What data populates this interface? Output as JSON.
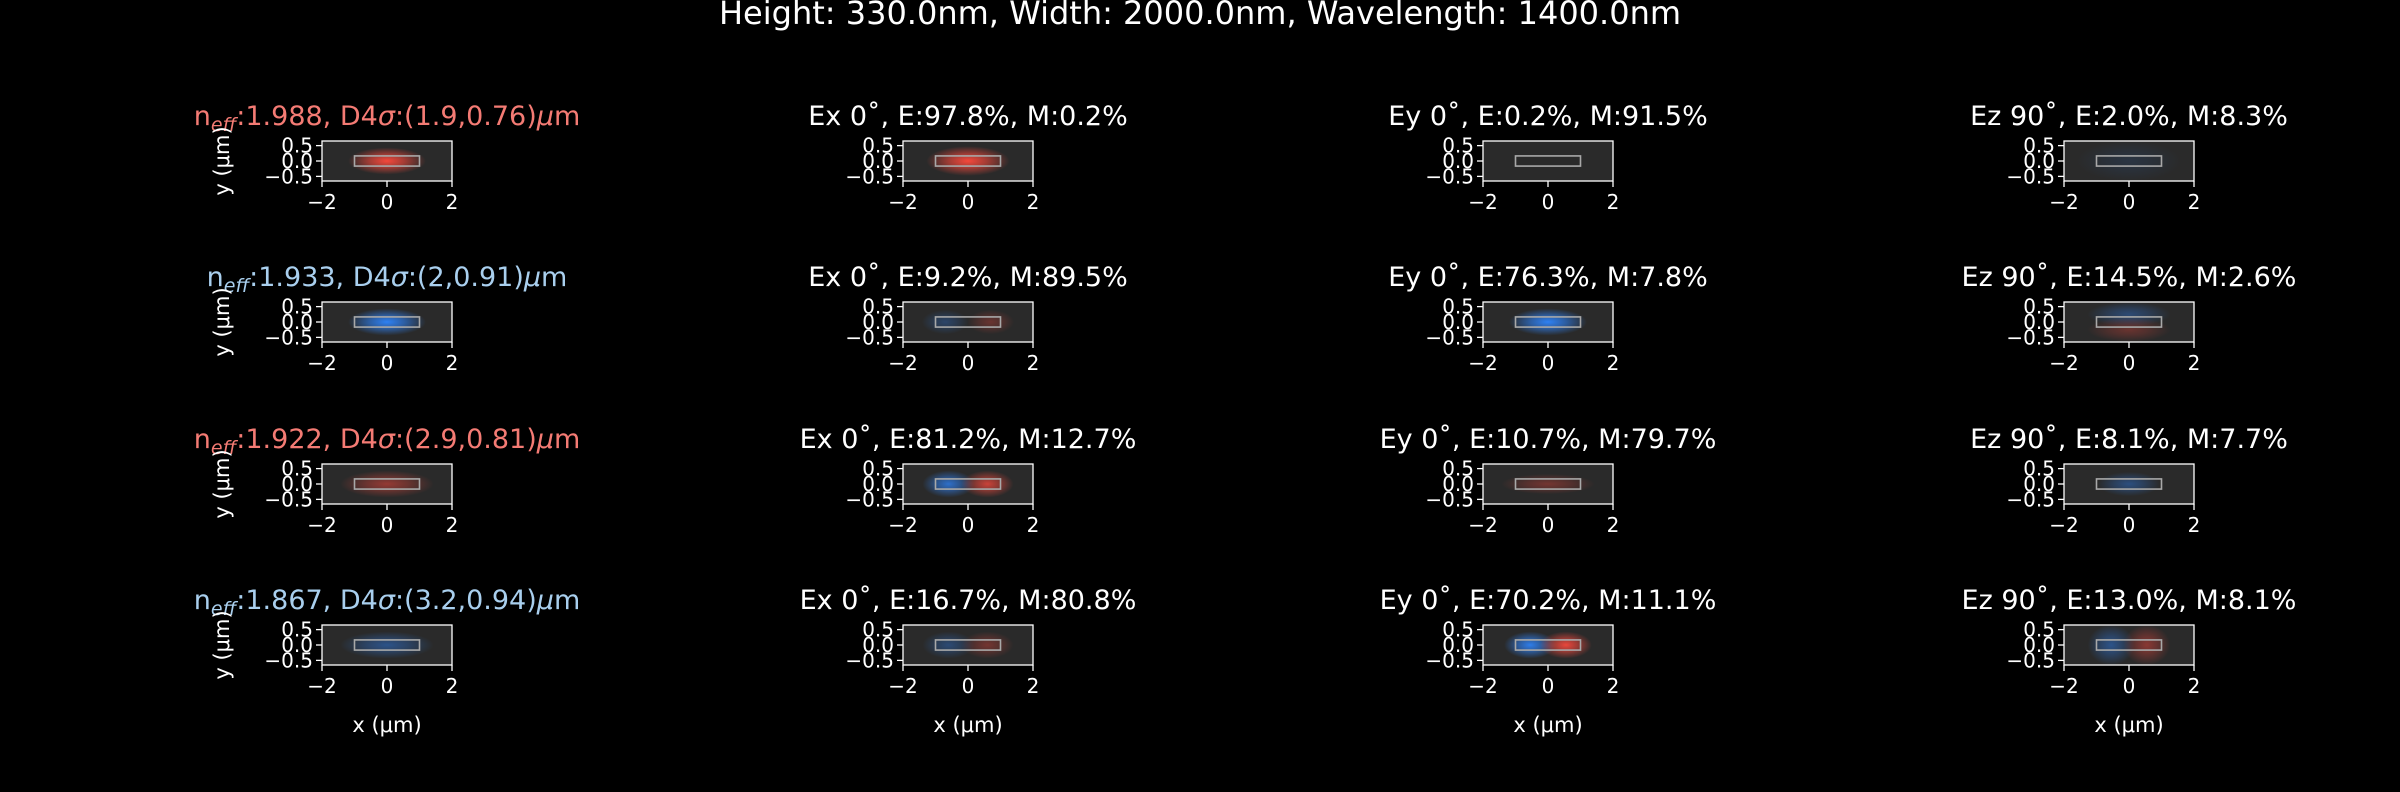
{
  "suptitle": "Height: 330.0nm, Width: 2000.0nm, Wavelength: 1400.0nm",
  "colors": {
    "background": "#000000",
    "axes_face": "#2a2a2a",
    "red_field": "#ff4a3d",
    "blue_field": "#2f86ff",
    "neff_red": "#f47b74",
    "neff_blue": "#a9cfee"
  },
  "chart_data": {
    "type": "heatmap",
    "layout": "grid 4 rows x 4 columns",
    "xlabel": "x (μm)",
    "ylabel": "y (μm)",
    "xticks": [
      "−2",
      "0",
      "2"
    ],
    "yticks": [
      "0.5",
      "0.0",
      "−0.5"
    ],
    "xlim": [
      -2,
      2
    ],
    "ylim": [
      -0.65,
      0.65
    ],
    "waveguide_core": {
      "x": [
        -1.0,
        1.0
      ],
      "y": [
        -0.165,
        0.165
      ]
    },
    "modes": [
      {
        "neff": "1.988",
        "d4sigma": "(1.9,0.76)",
        "title_color": "red",
        "panels": [
          {
            "component": "Ex 0˚",
            "E": "97.8%",
            "M": "0.2%"
          },
          {
            "component": "Ey 0˚",
            "E": "0.2%",
            "M": "91.5%"
          },
          {
            "component": "Ez 90˚",
            "E": "2.0%",
            "M": "8.3%"
          }
        ],
        "fields": [
          {
            "panel": "mode",
            "blobs": [
              {
                "x": 0,
                "y": 0,
                "sx": 0.75,
                "sy": 0.2,
                "color": "red",
                "strength": 0.95
              }
            ]
          },
          {
            "panel": "Ex",
            "blobs": [
              {
                "x": 0,
                "y": 0,
                "sx": 0.8,
                "sy": 0.22,
                "color": "red",
                "strength": 0.95
              }
            ]
          },
          {
            "panel": "Ey",
            "blobs": []
          },
          {
            "panel": "Ez",
            "blobs": [
              {
                "x": 0,
                "y": 0,
                "sx": 1.0,
                "sy": 0.3,
                "color": "blue",
                "strength": 0.12
              }
            ]
          }
        ]
      },
      {
        "neff": "1.933",
        "d4sigma": "(2,0.91)",
        "title_color": "blue",
        "panels": [
          {
            "component": "Ex 0˚",
            "E": "9.2%",
            "M": "89.5%"
          },
          {
            "component": "Ey 0˚",
            "E": "76.3%",
            "M": "7.8%"
          },
          {
            "component": "Ez 90˚",
            "E": "14.5%",
            "M": "2.6%"
          }
        ],
        "fields": [
          {
            "panel": "mode",
            "blobs": [
              {
                "x": 0,
                "y": 0,
                "sx": 0.75,
                "sy": 0.2,
                "color": "blue",
                "strength": 0.95
              }
            ]
          },
          {
            "panel": "Ex",
            "blobs": [
              {
                "x": -0.7,
                "y": 0,
                "sx": 0.45,
                "sy": 0.18,
                "color": "blue",
                "strength": 0.3
              },
              {
                "x": 0.7,
                "y": 0,
                "sx": 0.45,
                "sy": 0.18,
                "color": "red",
                "strength": 0.3
              }
            ]
          },
          {
            "panel": "Ey",
            "blobs": [
              {
                "x": 0,
                "y": 0,
                "sx": 0.75,
                "sy": 0.2,
                "color": "blue",
                "strength": 0.95
              }
            ]
          },
          {
            "panel": "Ez",
            "blobs": [
              {
                "x": 0,
                "y": 0.25,
                "sx": 0.8,
                "sy": 0.18,
                "color": "blue",
                "strength": 0.35
              },
              {
                "x": 0,
                "y": -0.25,
                "sx": 0.8,
                "sy": 0.18,
                "color": "red",
                "strength": 0.3
              }
            ]
          }
        ]
      },
      {
        "neff": "1.922",
        "d4sigma": "(2.9,0.81)",
        "title_color": "red",
        "panels": [
          {
            "component": "Ex 0˚",
            "E": "81.2%",
            "M": "12.7%"
          },
          {
            "component": "Ey 0˚",
            "E": "10.7%",
            "M": "79.7%"
          },
          {
            "component": "Ez 90˚",
            "E": "8.1%",
            "M": "7.7%"
          }
        ],
        "fields": [
          {
            "panel": "mode",
            "blobs": [
              {
                "x": 0,
                "y": 0,
                "sx": 0.9,
                "sy": 0.2,
                "color": "red",
                "strength": 0.5
              }
            ]
          },
          {
            "panel": "Ex",
            "blobs": [
              {
                "x": -0.6,
                "y": 0,
                "sx": 0.5,
                "sy": 0.2,
                "color": "blue",
                "strength": 0.75
              },
              {
                "x": 0.6,
                "y": 0,
                "sx": 0.5,
                "sy": 0.2,
                "color": "red",
                "strength": 0.75
              }
            ]
          },
          {
            "panel": "Ey",
            "blobs": [
              {
                "x": 0,
                "y": 0,
                "sx": 0.9,
                "sy": 0.15,
                "color": "red",
                "strength": 0.35
              }
            ]
          },
          {
            "panel": "Ez",
            "blobs": [
              {
                "x": 0,
                "y": 0,
                "sx": 0.6,
                "sy": 0.18,
                "color": "blue",
                "strength": 0.4
              }
            ]
          }
        ]
      },
      {
        "neff": "1.867",
        "d4sigma": "(3.2,0.94)",
        "title_color": "blue",
        "panels": [
          {
            "component": "Ex 0˚",
            "E": "16.7%",
            "M": "80.8%"
          },
          {
            "component": "Ey 0˚",
            "E": "70.2%",
            "M": "11.1%"
          },
          {
            "component": "Ez 90˚",
            "E": "13.0%",
            "M": "8.1%"
          }
        ],
        "fields": [
          {
            "panel": "mode",
            "blobs": [
              {
                "x": 0,
                "y": 0,
                "sx": 0.9,
                "sy": 0.2,
                "color": "blue",
                "strength": 0.45
              }
            ]
          },
          {
            "panel": "Ex",
            "blobs": [
              {
                "x": -0.6,
                "y": 0,
                "sx": 0.5,
                "sy": 0.2,
                "color": "blue",
                "strength": 0.35
              },
              {
                "x": 0.6,
                "y": 0,
                "sx": 0.5,
                "sy": 0.2,
                "color": "red",
                "strength": 0.35
              }
            ]
          },
          {
            "panel": "Ey",
            "blobs": [
              {
                "x": -0.55,
                "y": 0,
                "sx": 0.5,
                "sy": 0.2,
                "color": "blue",
                "strength": 0.9
              },
              {
                "x": 0.55,
                "y": 0,
                "sx": 0.5,
                "sy": 0.2,
                "color": "red",
                "strength": 0.9
              }
            ]
          },
          {
            "panel": "Ez",
            "blobs": [
              {
                "x": -0.55,
                "y": 0,
                "sx": 0.45,
                "sy": 0.3,
                "color": "blue",
                "strength": 0.45
              },
              {
                "x": 0.55,
                "y": 0,
                "sx": 0.45,
                "sy": 0.3,
                "color": "red",
                "strength": 0.45
              }
            ]
          }
        ]
      }
    ]
  }
}
